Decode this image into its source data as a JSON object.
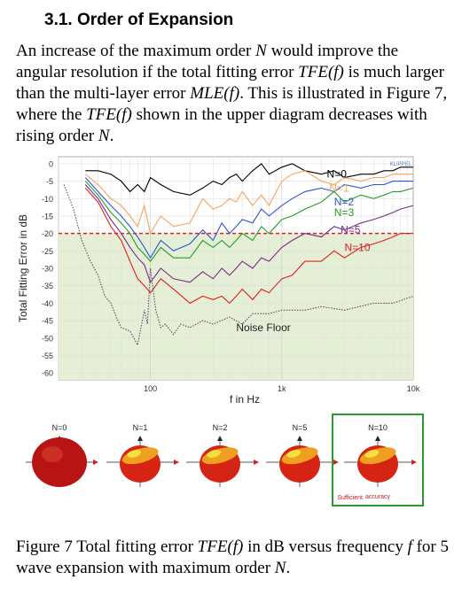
{
  "heading": "3.1. Order of Expansion",
  "paragraph": {
    "t1": "An increase of the maximum order ",
    "N1": "N",
    "t2": " would improve the angular resolution if the total fitting error ",
    "TFE1": "TFE(f)",
    "t3": " is much larger than the multi-layer error ",
    "MLE": "MLE(f)",
    "t4": ". This is illustrated in Figure 7, where the ",
    "TFE2": "TFE(f)",
    "t5": " shown in the upper diagram decreases with rising order ",
    "N2": "N",
    "t6": "."
  },
  "chart_data": {
    "type": "line",
    "xlabel": "f in Hz",
    "ylabel": "Total Fitting Error in dB",
    "xscale": "log",
    "xlim": [
      20,
      10000
    ],
    "ylim": [
      -62,
      2
    ],
    "xticks": [
      {
        "value": 100,
        "label": "100"
      },
      {
        "value": 1000,
        "label": "1k"
      },
      {
        "value": 10000,
        "label": "10k"
      }
    ],
    "yticks": [
      0,
      -5,
      -10,
      -15,
      -20,
      -25,
      -30,
      -35,
      -40,
      -45,
      -50,
      -55,
      -60
    ],
    "grid": true,
    "watermark": "KLIPPEL",
    "threshold": {
      "value": -20,
      "color": "#e02020"
    },
    "sufficient_region": {
      "from": -20,
      "to": -62,
      "color": "#e4efd6"
    },
    "series": [
      {
        "name": "N=0",
        "color": "#000000",
        "x": [
          32,
          40,
          50,
          60,
          70,
          80,
          90,
          100,
          120,
          150,
          200,
          250,
          300,
          350,
          400,
          450,
          500,
          600,
          700,
          800,
          1000,
          1200,
          1500,
          2000,
          2500,
          3000,
          4000,
          5000,
          6000,
          7000,
          8000,
          10000
        ],
        "y": [
          -2,
          -2,
          -3,
          -5,
          -8,
          -6,
          -8,
          -4,
          -6,
          -8,
          -9,
          -7,
          -5,
          -6,
          -4,
          -3,
          -5,
          -2,
          0,
          -3,
          -1,
          0,
          -2,
          -3,
          -2,
          -4,
          -3,
          -3,
          -2,
          -2,
          -1,
          -1
        ]
      },
      {
        "name": "N=1",
        "color": "#f4a460",
        "x": [
          32,
          40,
          50,
          60,
          70,
          80,
          90,
          100,
          120,
          150,
          200,
          250,
          300,
          350,
          400,
          450,
          500,
          600,
          700,
          800,
          1000,
          1200,
          1500,
          2000,
          2500,
          3000,
          4000,
          5000,
          6000,
          7000,
          8000,
          10000
        ],
        "y": [
          -3,
          -6,
          -10,
          -12,
          -15,
          -18,
          -12,
          -20,
          -15,
          -18,
          -17,
          -10,
          -13,
          -12,
          -10,
          -11,
          -8,
          -12,
          -9,
          -12,
          -5,
          -3,
          -2,
          -5,
          -6,
          -4,
          -5,
          -4,
          -4,
          -3,
          -3,
          -3
        ]
      },
      {
        "name": "N=2",
        "color": "#2b55d6",
        "x": [
          32,
          40,
          50,
          60,
          70,
          80,
          90,
          100,
          120,
          150,
          200,
          250,
          300,
          350,
          400,
          450,
          500,
          600,
          700,
          800,
          1000,
          1200,
          1500,
          2000,
          2500,
          3000,
          4000,
          5000,
          6000,
          7000,
          8000,
          10000
        ],
        "y": [
          -4,
          -8,
          -12,
          -15,
          -18,
          -21,
          -24,
          -27,
          -22,
          -25,
          -23,
          -19,
          -22,
          -17,
          -20,
          -18,
          -16,
          -17,
          -13,
          -15,
          -12,
          -10,
          -8,
          -7,
          -8,
          -6,
          -7,
          -6,
          -6,
          -5,
          -5,
          -5
        ]
      },
      {
        "name": "N=3",
        "color": "#22a022",
        "x": [
          32,
          40,
          50,
          60,
          70,
          80,
          90,
          100,
          120,
          150,
          200,
          250,
          300,
          350,
          400,
          450,
          500,
          600,
          700,
          800,
          1000,
          1200,
          1500,
          2000,
          2500,
          3000,
          4000,
          5000,
          6000,
          7000,
          8000,
          10000
        ],
        "y": [
          -5,
          -9,
          -14,
          -17,
          -20,
          -24,
          -26,
          -28,
          -24,
          -27,
          -27,
          -22,
          -24,
          -22,
          -24,
          -22,
          -20,
          -22,
          -18,
          -20,
          -16,
          -15,
          -13,
          -11,
          -8,
          -11,
          -9,
          -10,
          -9,
          -8,
          -8,
          -7
        ]
      },
      {
        "name": "N=5",
        "color": "#7a2a8a",
        "x": [
          32,
          40,
          50,
          60,
          70,
          80,
          90,
          100,
          120,
          150,
          200,
          250,
          300,
          350,
          400,
          450,
          500,
          600,
          700,
          800,
          1000,
          1200,
          1500,
          2000,
          2500,
          3000,
          4000,
          5000,
          6000,
          7000,
          8000,
          10000
        ],
        "y": [
          -6,
          -10,
          -16,
          -20,
          -24,
          -27,
          -29,
          -34,
          -30,
          -33,
          -34,
          -31,
          -33,
          -30,
          -32,
          -30,
          -28,
          -30,
          -27,
          -28,
          -24,
          -22,
          -20,
          -21,
          -18,
          -19,
          -17,
          -16,
          -15,
          -14,
          -13,
          -12
        ]
      },
      {
        "name": "N=10",
        "color": "#e02020",
        "x": [
          32,
          40,
          50,
          60,
          70,
          80,
          90,
          100,
          120,
          150,
          200,
          250,
          300,
          350,
          400,
          450,
          500,
          600,
          700,
          800,
          1000,
          1200,
          1500,
          2000,
          2500,
          3000,
          4000,
          5000,
          6000,
          7000,
          8000,
          10000
        ],
        "y": [
          -7,
          -11,
          -18,
          -22,
          -28,
          -33,
          -35,
          -37,
          -33,
          -36,
          -40,
          -38,
          -39,
          -38,
          -40,
          -38,
          -36,
          -39,
          -36,
          -37,
          -33,
          -32,
          -28,
          -28,
          -25,
          -27,
          -24,
          -23,
          -22,
          -21,
          -20,
          -20
        ]
      },
      {
        "name": "Noise Floor",
        "color": "#555555",
        "dashed": true,
        "x": [
          22,
          26,
          30,
          35,
          40,
          45,
          50,
          55,
          60,
          70,
          80,
          90,
          95,
          100,
          110,
          120,
          130,
          150,
          170,
          200,
          250,
          300,
          400,
          500,
          600,
          800,
          1000,
          1500,
          2000,
          3000,
          5000,
          7000,
          10000
        ],
        "y": [
          -6,
          -13,
          -22,
          -28,
          -32,
          -38,
          -40,
          -44,
          -47,
          -48,
          -52,
          -42,
          -46,
          -30,
          -42,
          -47,
          -46,
          -49,
          -46,
          -47,
          -45,
          -46,
          -44,
          -46,
          -43,
          -43,
          -42,
          -42,
          -41,
          -42,
          -40,
          -40,
          -38
        ]
      }
    ],
    "labels": [
      {
        "text": "N=0",
        "color": "#000000",
        "x": 2200,
        "y": -3
      },
      {
        "text": "N=1",
        "color": "#f4a460",
        "x": 2300,
        "y": -7
      },
      {
        "text": "N=2",
        "color": "#2b55d6",
        "x": 2500,
        "y": -11
      },
      {
        "text": "N=3",
        "color": "#22a022",
        "x": 2500,
        "y": -14
      },
      {
        "text": "N=5",
        "color": "#7a2a8a",
        "x": 2800,
        "y": -19
      },
      {
        "text": "N=10",
        "color": "#e02020",
        "x": 3000,
        "y": -24
      }
    ],
    "noise_label": "Noise Floor"
  },
  "balloons": {
    "items": [
      {
        "label": "N=0",
        "kind": "sphere"
      },
      {
        "label": "N=1",
        "kind": "lobed"
      },
      {
        "label": "N=2",
        "kind": "lobed"
      },
      {
        "label": "N=5",
        "kind": "lobed"
      },
      {
        "label": "N=10",
        "kind": "lobed",
        "highlighted": true
      }
    ],
    "sufficient_left": "Sufficient",
    "sufficient_right": "accuracy",
    "highlight_color": "#2a9a2a"
  },
  "caption": {
    "t1": "Figure 7 Total fitting error ",
    "TFE": "TFE(f)",
    "t2": " in dB versus frequency ",
    "f": "f",
    "t3": " for 5 wave expansion with maximum order ",
    "N": "N",
    "t4": "."
  }
}
